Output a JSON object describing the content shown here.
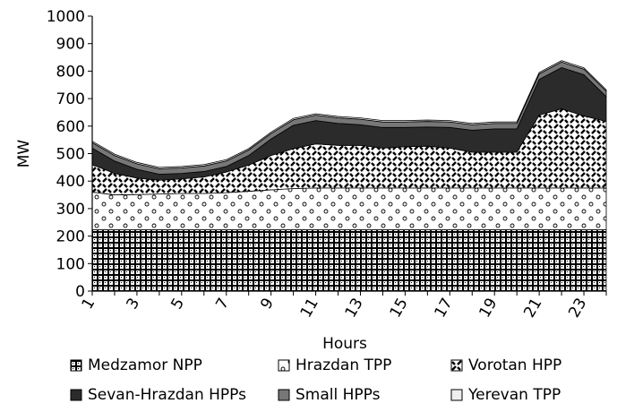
{
  "chart_data": {
    "type": "area",
    "stacked": true,
    "title": "",
    "xlabel": "Hours",
    "ylabel": "MW",
    "xlim": [
      1,
      24
    ],
    "ylim": [
      0,
      1000
    ],
    "x_tick_labels": [
      "1",
      "3",
      "5",
      "7",
      "9",
      "11",
      "13",
      "15",
      "17",
      "19",
      "21",
      "23"
    ],
    "y_tick_labels": [
      "0",
      "100",
      "200",
      "300",
      "400",
      "500",
      "600",
      "700",
      "800",
      "900",
      "1000"
    ],
    "grid": false,
    "legend_position": "bottom",
    "x": [
      1,
      2,
      3,
      4,
      5,
      6,
      7,
      8,
      9,
      10,
      11,
      12,
      13,
      14,
      15,
      16,
      17,
      18,
      19,
      20,
      21,
      22,
      23,
      24
    ],
    "series": [
      {
        "name": "Medzamor NPP",
        "pattern": "dense-grid",
        "values": [
          223,
          223,
          223,
          223,
          223,
          223,
          223,
          223,
          223,
          223,
          223,
          223,
          223,
          223,
          223,
          223,
          223,
          223,
          223,
          223,
          223,
          223,
          223,
          223
        ]
      },
      {
        "name": "Hrazdan TPP",
        "pattern": "dots",
        "values": [
          137,
          127,
          128,
          130,
          132,
          132,
          135,
          140,
          145,
          150,
          152,
          152,
          152,
          152,
          152,
          152,
          152,
          152,
          152,
          152,
          152,
          152,
          152,
          152
        ]
      },
      {
        "name": "Vorotan HPP",
        "pattern": "dashes",
        "values": [
          100,
          78,
          60,
          50,
          53,
          60,
          75,
          95,
          125,
          145,
          160,
          155,
          155,
          145,
          150,
          152,
          145,
          130,
          130,
          130,
          265,
          288,
          262,
          242
        ]
      },
      {
        "name": "Sevan-Hrazdan HPPs",
        "pattern": "solid",
        "color": "#2b2b2b",
        "values": [
          60,
          45,
          32,
          22,
          20,
          20,
          20,
          35,
          60,
          85,
          85,
          80,
          75,
          75,
          70,
          70,
          75,
          80,
          85,
          85,
          130,
          150,
          150,
          90
        ]
      },
      {
        "name": "Small HPPs",
        "pattern": "solid",
        "color": "#777777",
        "values": [
          20,
          20,
          20,
          20,
          20,
          20,
          20,
          20,
          20,
          20,
          20,
          20,
          20,
          20,
          20,
          20,
          20,
          20,
          20,
          20,
          20,
          20,
          20,
          20
        ]
      },
      {
        "name": "Yerevan TPP",
        "pattern": "light",
        "color": "#eeeeee",
        "values": [
          5,
          5,
          5,
          5,
          5,
          5,
          5,
          5,
          5,
          5,
          5,
          5,
          5,
          5,
          5,
          5,
          5,
          5,
          5,
          5,
          5,
          5,
          5,
          5
        ]
      }
    ]
  }
}
